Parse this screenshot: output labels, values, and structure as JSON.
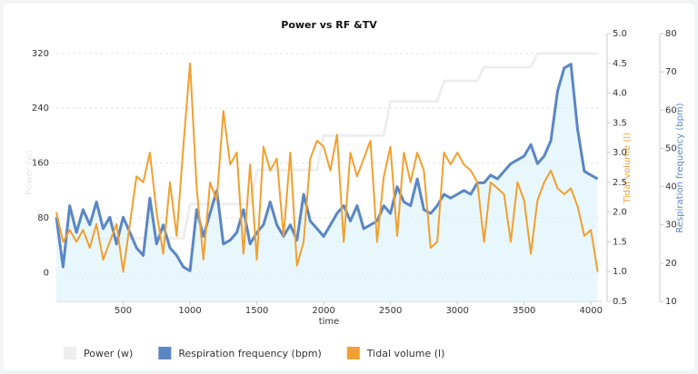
{
  "chart_data": {
    "type": "line",
    "title": "Power vs RF &TV",
    "x_label": "time",
    "y_label": "Power (w)",
    "y2_label": "Tidal volume (l)",
    "y3_label": "Respiration frequency (bpm)",
    "grid": true,
    "x": [
      0,
      50,
      100,
      150,
      200,
      250,
      300,
      350,
      400,
      450,
      500,
      550,
      600,
      650,
      700,
      750,
      800,
      850,
      900,
      950,
      1000,
      1050,
      1100,
      1150,
      1200,
      1250,
      1300,
      1350,
      1400,
      1450,
      1500,
      1550,
      1600,
      1650,
      1700,
      1750,
      1800,
      1850,
      1900,
      1950,
      2000,
      2050,
      2100,
      2150,
      2200,
      2250,
      2300,
      2350,
      2400,
      2450,
      2500,
      2550,
      2600,
      2650,
      2700,
      2750,
      2800,
      2850,
      2900,
      2950,
      3000,
      3050,
      3100,
      3150,
      3200,
      3250,
      3300,
      3350,
      3400,
      3450,
      3500,
      3550,
      3600,
      3650,
      3700,
      3750,
      3800,
      3850,
      3900,
      3950,
      4000,
      4050
    ],
    "xlim": [
      0,
      4080
    ],
    "xticks": [
      500,
      1000,
      1500,
      2000,
      2500,
      3000,
      3500,
      4000
    ],
    "ylim": [
      -42,
      349
    ],
    "yticks": [
      0,
      80,
      160,
      240,
      320
    ],
    "y2lim": [
      0.5,
      5.0
    ],
    "y2ticks": [
      {
        "value": 0.5,
        "label": "0.5"
      },
      {
        "value": 1,
        "label": "1.0"
      },
      {
        "value": 1.5,
        "label": "1.5"
      },
      {
        "value": 2,
        "label": "2.0"
      },
      {
        "value": 2.5,
        "label": "2.5"
      },
      {
        "value": 3,
        "label": "3.0"
      },
      {
        "value": 3.5,
        "label": "3.5"
      },
      {
        "value": 4,
        "label": "4.0"
      },
      {
        "value": 4.5,
        "label": "4.5"
      },
      {
        "value": 5,
        "label": "5.0"
      }
    ],
    "y3lim": [
      10,
      80
    ],
    "y3ticks": [
      10,
      20,
      30,
      40,
      50,
      60,
      70,
      80
    ],
    "series": [
      {
        "name": "Power (w)",
        "color": "#eeeeee",
        "axis": "y",
        "values": [
          50,
          50,
          50,
          50,
          50,
          50,
          50,
          50,
          50,
          50,
          50,
          50,
          50,
          50,
          50,
          50,
          50,
          50,
          50,
          50,
          100,
          100,
          100,
          100,
          100,
          100,
          100,
          100,
          100,
          100,
          150,
          150,
          150,
          150,
          150,
          150,
          150,
          150,
          150,
          150,
          200,
          200,
          200,
          200,
          200,
          200,
          200,
          200,
          200,
          200,
          250,
          250,
          250,
          250,
          250,
          250,
          250,
          250,
          280,
          280,
          280,
          280,
          280,
          280,
          300,
          300,
          300,
          300,
          300,
          300,
          300,
          300,
          320,
          320,
          320,
          320,
          320,
          320,
          320,
          320,
          320,
          320
        ]
      },
      {
        "name": "Respiration frequency (bpm)",
        "color": "#5b86c5",
        "axis": "y3",
        "values": [
          32,
          19,
          35,
          28,
          34,
          30,
          36,
          29,
          32,
          25,
          32,
          28,
          24,
          22,
          37,
          25,
          30,
          24,
          22,
          19,
          18,
          34,
          27,
          33,
          39,
          25,
          26,
          28,
          34,
          25,
          28,
          30,
          36,
          30,
          27,
          30,
          26,
          38,
          31,
          29,
          27,
          30,
          33,
          35,
          31,
          35,
          29,
          30,
          31,
          35,
          33,
          40,
          36,
          35,
          42,
          34,
          33,
          35,
          38,
          37,
          38,
          39,
          38,
          41,
          41,
          43,
          42,
          44,
          46,
          47,
          48,
          51,
          46,
          48,
          52,
          65,
          71,
          72,
          55,
          44,
          43,
          42
        ]
      },
      {
        "name": "Tidal volume (l)",
        "color": "#f0a030",
        "axis": "y2",
        "values": [
          2.0,
          1.5,
          1.7,
          1.5,
          1.7,
          1.4,
          1.8,
          1.2,
          1.5,
          1.8,
          1.0,
          1.8,
          2.6,
          2.5,
          3.0,
          2.0,
          1.3,
          2.5,
          1.6,
          3.1,
          4.5,
          2.4,
          1.2,
          2.5,
          2.2,
          3.7,
          2.8,
          3.0,
          1.3,
          2.8,
          1.2,
          3.1,
          2.7,
          2.9,
          1.6,
          3.0,
          1.1,
          1.5,
          2.9,
          3.2,
          3.1,
          2.7,
          3.3,
          1.5,
          3.0,
          2.6,
          2.9,
          3.2,
          1.5,
          2.6,
          3.1,
          1.6,
          3.0,
          2.5,
          3.0,
          2.7,
          1.4,
          1.5,
          3.0,
          2.8,
          3.0,
          2.8,
          2.7,
          2.5,
          1.5,
          2.5,
          2.4,
          2.3,
          1.5,
          2.5,
          2.2,
          1.3,
          2.2,
          2.5,
          2.7,
          2.4,
          2.3,
          2.4,
          2.1,
          1.6,
          1.7,
          1.0
        ]
      }
    ]
  }
}
